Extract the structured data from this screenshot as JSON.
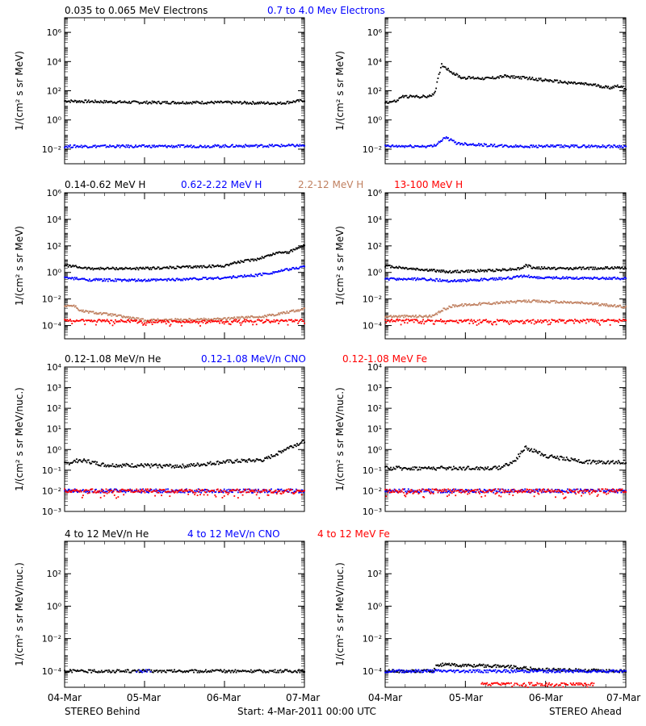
{
  "header": {
    "electrons": [
      {
        "text": "0.035 to 0.065 MeV Electrons",
        "color": "#000000"
      },
      {
        "text": "0.7 to 4.0 Mev Electrons",
        "color": "#0000ff"
      }
    ],
    "protons": [
      {
        "text": "0.14-0.62 MeV H",
        "color": "#000000"
      },
      {
        "text": "0.62-2.22 MeV H",
        "color": "#0000ff"
      },
      {
        "text": "2.2-12 MeV H",
        "color": "#c08060"
      },
      {
        "text": "13-100 MeV H",
        "color": "#ff0000"
      }
    ],
    "low_ions": [
      {
        "text": "0.12-1.08 MeV/n He",
        "color": "#000000"
      },
      {
        "text": "0.12-1.08 MeV/n CNO",
        "color": "#0000ff"
      },
      {
        "text": "0.12-1.08 MeV Fe",
        "color": "#ff0000"
      }
    ],
    "high_ions": [
      {
        "text": "4 to 12 MeV/n He",
        "color": "#000000"
      },
      {
        "text": "4 to 12 MeV/n CNO",
        "color": "#0000ff"
      },
      {
        "text": "4 to 12 MeV Fe",
        "color": "#ff0000"
      }
    ]
  },
  "footer": {
    "left": "STEREO Behind",
    "center": "Start:  4-Mar-2011 00:00 UTC",
    "right": "STEREO Ahead"
  },
  "x_ticks": [
    "04-Mar",
    "05-Mar",
    "06-Mar",
    "07-Mar"
  ],
  "chart_data": [
    {
      "type": "scatter",
      "panel": "electrons-behind",
      "ylabel": "1/(cm² s sr MeV)",
      "yscale": "log",
      "ylim_exp": [
        -3,
        7
      ],
      "tick_exps": [
        -2,
        0,
        2,
        4,
        6
      ],
      "x_days": [
        0,
        3
      ],
      "series": [
        {
          "name": "0.035 to 0.065 MeV Electrons",
          "color": "#000000",
          "log_points": [
            [
              0,
              1.3
            ],
            [
              1,
              1.2
            ],
            [
              2,
              1.2
            ],
            [
              2.7,
              1.15
            ],
            [
              3,
              1.35
            ]
          ]
        },
        {
          "name": "0.7 to 4.0 Mev Electrons",
          "color": "#0000ff",
          "log_points": [
            [
              0,
              -1.8
            ],
            [
              1.5,
              -1.8
            ],
            [
              3,
              -1.75
            ]
          ]
        }
      ]
    },
    {
      "type": "scatter",
      "panel": "electrons-ahead",
      "ylabel": "1/(cm² s sr MeV)",
      "yscale": "log",
      "ylim_exp": [
        -3,
        7
      ],
      "tick_exps": [
        -2,
        0,
        2,
        4,
        6
      ],
      "x_days": [
        0,
        3
      ],
      "series": [
        {
          "name": "0.035 to 0.065 MeV Electrons",
          "color": "#000000",
          "log_points": [
            [
              0,
              1.2
            ],
            [
              0.15,
              1.3
            ],
            [
              0.2,
              1.6
            ],
            [
              0.55,
              1.6
            ],
            [
              0.62,
              1.9
            ],
            [
              0.7,
              3.8
            ],
            [
              0.85,
              3.2
            ],
            [
              0.95,
              2.9
            ],
            [
              1.3,
              2.85
            ],
            [
              1.5,
              3.0
            ],
            [
              1.8,
              2.85
            ],
            [
              2.2,
              2.6
            ],
            [
              2.6,
              2.4
            ],
            [
              2.8,
              2.2
            ],
            [
              2.9,
              2.35
            ],
            [
              3,
              2.15
            ]
          ]
        },
        {
          "name": "0.7 to 4.0 Mev Electrons",
          "color": "#0000ff",
          "log_points": [
            [
              0,
              -1.8
            ],
            [
              0.6,
              -1.8
            ],
            [
              0.75,
              -1.2
            ],
            [
              0.9,
              -1.6
            ],
            [
              1.5,
              -1.8
            ],
            [
              3,
              -1.8
            ]
          ]
        }
      ]
    },
    {
      "type": "scatter",
      "panel": "protons-behind",
      "ylabel": "1/(cm² s sr MeV)",
      "yscale": "log",
      "ylim_exp": [
        -5,
        6
      ],
      "tick_exps": [
        -4,
        -2,
        0,
        2,
        4,
        6
      ],
      "x_days": [
        0,
        3
      ],
      "series": [
        {
          "name": "0.14-0.62 MeV H",
          "color": "#000000",
          "log_points": [
            [
              0,
              0.55
            ],
            [
              0.3,
              0.3
            ],
            [
              1,
              0.3
            ],
            [
              2,
              0.5
            ],
            [
              2.1,
              0.7
            ],
            [
              2.4,
              1.0
            ],
            [
              2.7,
              1.55
            ],
            [
              2.8,
              1.5
            ],
            [
              3,
              2.1
            ]
          ]
        },
        {
          "name": "0.62-2.22 MeV H",
          "color": "#0000ff",
          "log_points": [
            [
              0,
              -0.4
            ],
            [
              0.3,
              -0.55
            ],
            [
              1,
              -0.6
            ],
            [
              2,
              -0.4
            ],
            [
              2.4,
              -0.2
            ],
            [
              2.6,
              0.0
            ],
            [
              3,
              0.45
            ]
          ]
        },
        {
          "name": "2.2-12 MeV H",
          "color": "#c08060",
          "log_points": [
            [
              0,
              -2.5
            ],
            [
              0.12,
              -2.5
            ],
            [
              0.2,
              -2.9
            ],
            [
              0.6,
              -3.2
            ],
            [
              1,
              -3.6
            ],
            [
              2,
              -3.5
            ],
            [
              2.5,
              -3.3
            ],
            [
              3,
              -2.75
            ]
          ]
        },
        {
          "name": "13-100 MeV H",
          "color": "#ff0000",
          "log_points": [
            [
              0,
              -3.6
            ],
            [
              1.5,
              -3.7
            ],
            [
              3,
              -3.6
            ]
          ]
        }
      ]
    },
    {
      "type": "scatter",
      "panel": "protons-ahead",
      "ylabel": "1/(cm² s sr MeV)",
      "yscale": "log",
      "ylim_exp": [
        -5,
        6
      ],
      "tick_exps": [
        -4,
        -2,
        0,
        2,
        4,
        6
      ],
      "x_days": [
        0,
        3
      ],
      "series": [
        {
          "name": "0.14-0.62 MeV H",
          "color": "#000000",
          "log_points": [
            [
              0,
              0.5
            ],
            [
              0.3,
              0.3
            ],
            [
              0.8,
              0.05
            ],
            [
              1.3,
              0.15
            ],
            [
              1.7,
              0.3
            ],
            [
              1.75,
              0.55
            ],
            [
              1.85,
              0.35
            ],
            [
              2.2,
              0.3
            ],
            [
              3,
              0.35
            ]
          ]
        },
        {
          "name": "0.62-2.22 MeV H",
          "color": "#0000ff",
          "log_points": [
            [
              0,
              -0.5
            ],
            [
              0.5,
              -0.5
            ],
            [
              0.8,
              -0.65
            ],
            [
              1.5,
              -0.45
            ],
            [
              1.75,
              -0.25
            ],
            [
              1.9,
              -0.4
            ],
            [
              3,
              -0.45
            ]
          ]
        },
        {
          "name": "2.2-12 MeV H",
          "color": "#c08060",
          "log_points": [
            [
              0,
              -3.3
            ],
            [
              0.6,
              -3.3
            ],
            [
              0.72,
              -2.8
            ],
            [
              0.85,
              -2.5
            ],
            [
              1.2,
              -2.35
            ],
            [
              1.8,
              -2.15
            ],
            [
              2.5,
              -2.3
            ],
            [
              3,
              -2.6
            ]
          ]
        },
        {
          "name": "13-100 MeV H",
          "color": "#ff0000",
          "log_points": [
            [
              0,
              -3.6
            ],
            [
              1.5,
              -3.65
            ],
            [
              3,
              -3.6
            ]
          ]
        }
      ]
    },
    {
      "type": "scatter",
      "panel": "low-ions-behind",
      "ylabel": "1/(cm² s sr MeV/nuc.)",
      "yscale": "log",
      "ylim_exp": [
        -3,
        4
      ],
      "tick_exps": [
        -3,
        -2,
        -1,
        0,
        1,
        2,
        3,
        4
      ],
      "x_days": [
        0,
        3
      ],
      "series": [
        {
          "name": "0.12-1.08 MeV/n He",
          "color": "#000000",
          "log_points": [
            [
              0,
              -0.7
            ],
            [
              0.2,
              -0.5
            ],
            [
              0.5,
              -0.75
            ],
            [
              1.5,
              -0.8
            ],
            [
              2.0,
              -0.6
            ],
            [
              2.5,
              -0.5
            ],
            [
              2.8,
              0.1
            ],
            [
              3,
              0.4
            ]
          ]
        },
        {
          "name": "0.12-1.08 MeV/n CNO",
          "color": "#0000ff",
          "log_points": [
            [
              0,
              -2.0
            ],
            [
              3,
              -2.0
            ]
          ]
        },
        {
          "name": "0.12-1.08 MeV Fe",
          "color": "#ff0000",
          "log_points": [
            [
              0,
              -2.0
            ],
            [
              3,
              -2.0
            ]
          ]
        }
      ]
    },
    {
      "type": "scatter",
      "panel": "low-ions-ahead",
      "ylabel": "1/(cm² s sr MeV/nuc.)",
      "yscale": "log",
      "ylim_exp": [
        -3,
        4
      ],
      "tick_exps": [
        -3,
        -2,
        -1,
        0,
        1,
        2,
        3,
        4
      ],
      "x_days": [
        0,
        3
      ],
      "series": [
        {
          "name": "0.12-1.08 MeV/n He",
          "color": "#000000",
          "log_points": [
            [
              0,
              -0.9
            ],
            [
              1.4,
              -0.9
            ],
            [
              1.6,
              -0.6
            ],
            [
              1.75,
              0.1
            ],
            [
              2.0,
              -0.3
            ],
            [
              2.5,
              -0.6
            ],
            [
              3,
              -0.6
            ]
          ]
        },
        {
          "name": "0.12-1.08 MeV/n CNO",
          "color": "#0000ff",
          "log_points": [
            [
              0,
              -2.0
            ],
            [
              3,
              -2.0
            ]
          ]
        },
        {
          "name": "0.12-1.08 MeV Fe",
          "color": "#ff0000",
          "log_points": [
            [
              0,
              -2.0
            ],
            [
              3,
              -2.0
            ]
          ]
        }
      ]
    },
    {
      "type": "scatter",
      "panel": "high-ions-behind",
      "ylabel": "1/(cm² s sr MeV/nuc.)",
      "yscale": "log",
      "ylim_exp": [
        -5,
        4
      ],
      "tick_exps": [
        -4,
        -2,
        0,
        2
      ],
      "x_days": [
        0,
        3
      ],
      "series": [
        {
          "name": "4 to 12 MeV/n He",
          "color": "#000000",
          "log_points": [
            [
              0,
              -4.0
            ],
            [
              3,
              -4.0
            ]
          ]
        },
        {
          "name": "4 to 12 MeV/n CNO",
          "color": "#0000ff",
          "log_points": [
            [
              0.9,
              -4.0
            ],
            [
              1.1,
              -4.0
            ]
          ]
        },
        {
          "name": "4 to 12 MeV Fe",
          "color": "#ff0000",
          "log_points": []
        }
      ]
    },
    {
      "type": "scatter",
      "panel": "high-ions-ahead",
      "ylabel": "1/(cm² s sr MeV/nuc.)",
      "yscale": "log",
      "ylim_exp": [
        -5,
        4
      ],
      "tick_exps": [
        -4,
        -2,
        0,
        2
      ],
      "x_days": [
        0,
        3
      ],
      "series": [
        {
          "name": "4 to 12 MeV/n He",
          "color": "#000000",
          "log_points": [
            [
              0,
              -4.0
            ],
            [
              0.6,
              -4.0
            ],
            [
              0.65,
              -3.6
            ],
            [
              1.0,
              -3.65
            ],
            [
              1.5,
              -3.7
            ],
            [
              1.9,
              -3.9
            ],
            [
              3,
              -4.0
            ]
          ]
        },
        {
          "name": "4 to 12 MeV/n CNO",
          "color": "#0000ff",
          "log_points": [
            [
              0,
              -4.0
            ],
            [
              3,
              -4.0
            ]
          ]
        },
        {
          "name": "4 to 12 MeV Fe",
          "color": "#ff0000",
          "log_points": [
            [
              1.2,
              -4.8
            ],
            [
              1.8,
              -4.8
            ],
            [
              2.6,
              -4.8
            ]
          ]
        }
      ]
    }
  ]
}
